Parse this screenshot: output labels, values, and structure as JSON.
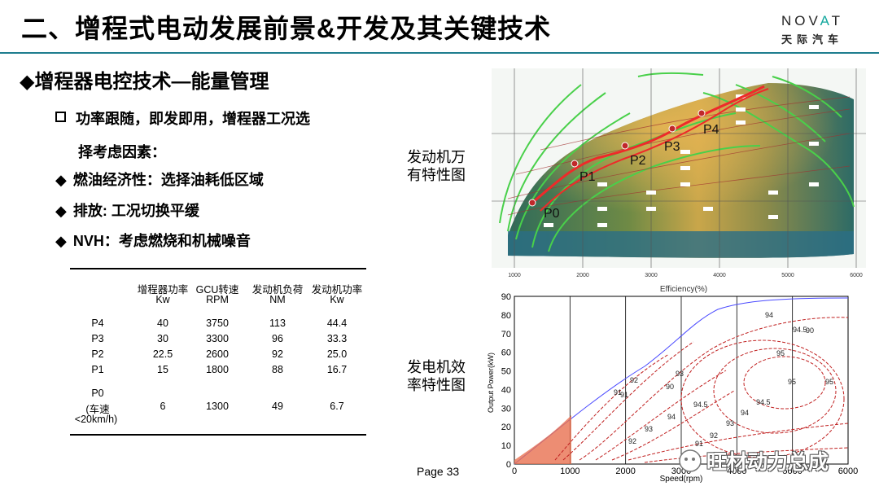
{
  "header": {
    "title": "二、增程式电动发展前景&开发及其关键技术",
    "logo_word_a": "N",
    "logo_word_b": "OV",
    "logo_word_c": "A",
    "logo_word_d": "T",
    "logo_cn": "天际汽车"
  },
  "section_title": "◆增程器电控技术—能量管理",
  "bullets": {
    "b1": "功率跟随，即发即用，增程器工况选",
    "b1_cont": "择考虑因素：",
    "b2": "燃油经济性：选择油耗低区域",
    "b3": "排放: 工况切换平缓",
    "b4": "NVH：考虑燃烧和机械噪音",
    "diamond": "◆"
  },
  "table": {
    "headers": [
      {
        "l1": "增程器功率",
        "l2": "Kw"
      },
      {
        "l1": "GCU转速",
        "l2": "RPM"
      },
      {
        "l1": "发动机负荷",
        "l2": "NM"
      },
      {
        "l1": "发动机功率",
        "l2": "Kw"
      }
    ],
    "rows": [
      {
        "name": "P4",
        "v": [
          "40",
          "3750",
          "113",
          "44.4"
        ]
      },
      {
        "name": "P3",
        "v": [
          "30",
          "3300",
          "96",
          "33.3"
        ]
      },
      {
        "name": "P2",
        "v": [
          "22.5",
          "2600",
          "92",
          "25.0"
        ]
      },
      {
        "name": "P1",
        "v": [
          "15",
          "1800",
          "88",
          "16.7"
        ]
      }
    ],
    "p0": {
      "name": "P0",
      "sub1": "(车速",
      "sub2": "<20km/h)",
      "v": [
        "6",
        "1300",
        "49",
        "6.7"
      ]
    }
  },
  "engine_map": {
    "caption_l1": "发动机万",
    "caption_l2": "有特性图",
    "xlabel": "Efficiency(%)",
    "x_ticks": [
      "1000",
      "2000",
      "3000",
      "4000",
      "5000",
      "6000"
    ],
    "points": [
      "P0",
      "P1",
      "P2",
      "P3",
      "P4"
    ]
  },
  "generator_map": {
    "caption_l1": "发电机效",
    "caption_l2": "率特性图",
    "xlabel": "Speed(rpm)",
    "ylabel": "Output Power(kW)",
    "x_ticks": [
      "0",
      "1000",
      "2000",
      "3000",
      "4000",
      "5000",
      "6000"
    ],
    "y_ticks": [
      "0",
      "10",
      "20",
      "30",
      "40",
      "50",
      "60",
      "70",
      "80",
      "90"
    ],
    "contour_labels": [
      "94",
      "94.5",
      "95",
      "95",
      "95",
      "94.5",
      "94",
      "93",
      "92",
      "91",
      "90",
      "94.5",
      "94",
      "93",
      "92",
      "91",
      "90",
      "93",
      "92",
      "91"
    ]
  },
  "footer": {
    "page": "Page  33",
    "watermark": "旺材动力总成"
  }
}
